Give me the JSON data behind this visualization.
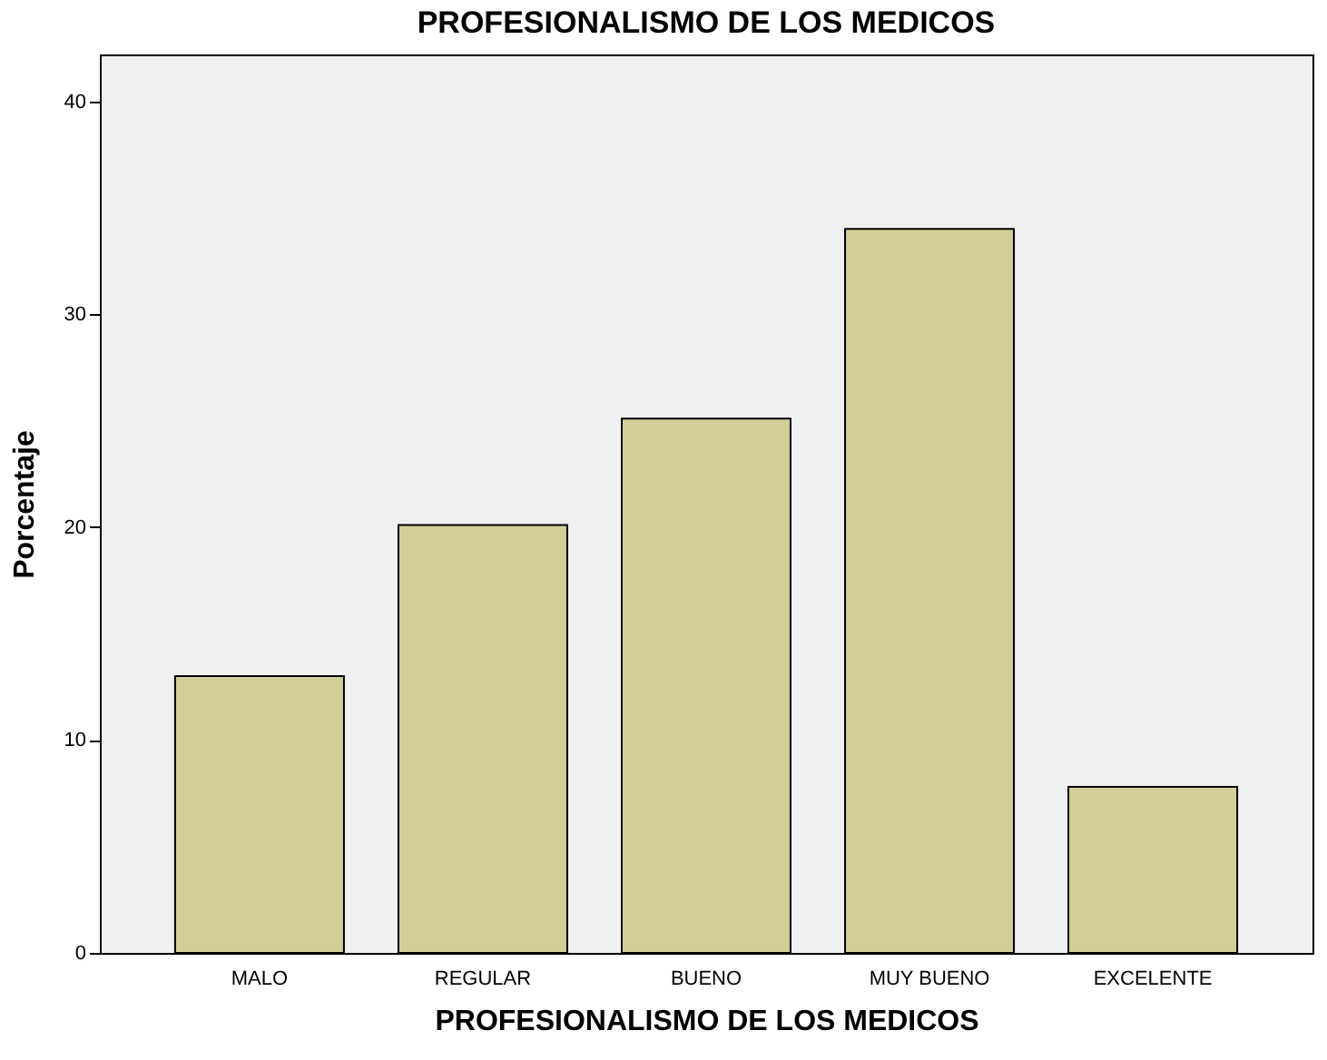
{
  "chart_data": {
    "type": "bar",
    "title": "PROFESIONALISMO DE LOS MEDICOS",
    "xlabel": "PROFESIONALISMO DE LOS MEDICOS",
    "ylabel": "Porcentaje",
    "categories": [
      "MALO",
      "REGULAR",
      "BUENO",
      "MUY BUENO",
      "EXCELENTE"
    ],
    "values": [
      13,
      20.1,
      25.1,
      34,
      7.8
    ],
    "color": "#d3ce97",
    "ylim": [
      0,
      42.2
    ],
    "yticks": [
      0,
      10,
      20,
      30,
      40
    ],
    "grid": false
  }
}
